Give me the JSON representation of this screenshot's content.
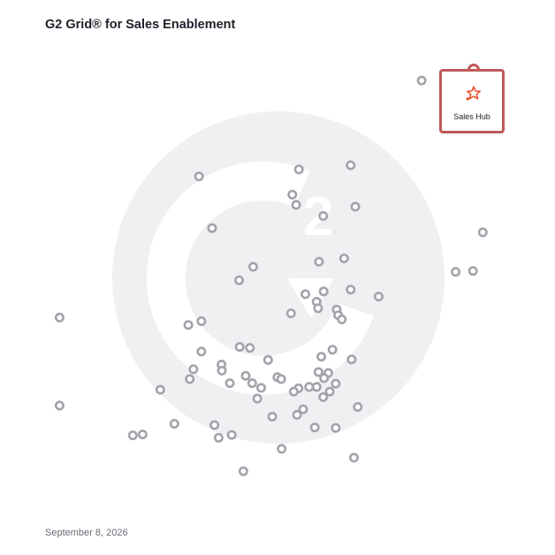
{
  "header": {
    "title": "G2 Grid® for Sales Enablement"
  },
  "footer": {
    "date": "September 8, 2026"
  },
  "colors": {
    "point_stroke": "#a3a4ab",
    "highlight": "#c0595a",
    "logo": "#e8512b",
    "watermark": "#eef0f2",
    "gradient_top_left": "#5a4fb5",
    "gradient_top_right": "#e8523b",
    "gradient_bottom_left": "#2fa1d8",
    "gradient_bottom_right": "#7a3ea8"
  },
  "chart_data": {
    "type": "scatter",
    "title": "G2 Grid® for Sales Enablement",
    "xlabel": "",
    "ylabel": "",
    "xlim": [
      0,
      100
    ],
    "ylim": [
      0,
      100
    ],
    "grid": "quadrants",
    "highlight": {
      "label": "Sales Hub",
      "x": 92.5,
      "y": 93.2,
      "icon": "hubspot-sprocket-icon"
    },
    "points": [
      [
        80.7,
        92.4
      ],
      [
        65.5,
        74.2
      ],
      [
        54.4,
        73.3
      ],
      [
        33.0,
        71.8
      ],
      [
        53.8,
        65.7
      ],
      [
        53.0,
        67.9
      ],
      [
        66.5,
        65.3
      ],
      [
        59.6,
        63.3
      ],
      [
        35.8,
        60.7
      ],
      [
        93.8,
        59.8
      ],
      [
        64.1,
        54.2
      ],
      [
        58.7,
        53.5
      ],
      [
        44.6,
        52.4
      ],
      [
        88.0,
        51.3
      ],
      [
        91.7,
        51.5
      ],
      [
        41.6,
        49.5
      ],
      [
        59.7,
        47.1
      ],
      [
        55.8,
        46.5
      ],
      [
        65.5,
        47.5
      ],
      [
        58.2,
        44.9
      ],
      [
        71.5,
        46.0
      ],
      [
        58.5,
        43.5
      ],
      [
        62.5,
        43.2
      ],
      [
        52.7,
        42.4
      ],
      [
        62.8,
        42.0
      ],
      [
        63.6,
        41.1
      ],
      [
        3.1,
        41.5
      ],
      [
        33.5,
        40.7
      ],
      [
        30.7,
        39.9
      ],
      [
        61.6,
        34.6
      ],
      [
        41.7,
        35.2
      ],
      [
        43.9,
        35.0
      ],
      [
        33.5,
        34.2
      ],
      [
        59.2,
        33.1
      ],
      [
        65.7,
        32.5
      ],
      [
        47.8,
        32.4
      ],
      [
        37.8,
        31.4
      ],
      [
        37.9,
        30.1
      ],
      [
        31.8,
        30.4
      ],
      [
        58.6,
        29.8
      ],
      [
        60.7,
        29.6
      ],
      [
        43.0,
        29.0
      ],
      [
        31.0,
        28.3
      ],
      [
        59.8,
        28.5
      ],
      [
        49.8,
        28.7
      ],
      [
        50.6,
        28.3
      ],
      [
        39.6,
        27.4
      ],
      [
        44.4,
        27.4
      ],
      [
        46.3,
        26.4
      ],
      [
        62.3,
        27.3
      ],
      [
        58.2,
        26.6
      ],
      [
        54.3,
        26.3
      ],
      [
        56.6,
        26.6
      ],
      [
        61.0,
        25.6
      ],
      [
        53.3,
        25.6
      ],
      [
        24.7,
        26.0
      ],
      [
        45.5,
        24.1
      ],
      [
        59.6,
        24.4
      ],
      [
        3.1,
        22.6
      ],
      [
        67.0,
        22.3
      ],
      [
        55.3,
        21.8
      ],
      [
        48.7,
        20.2
      ],
      [
        54.0,
        20.6
      ],
      [
        27.7,
        18.7
      ],
      [
        36.3,
        18.4
      ],
      [
        62.3,
        17.8
      ],
      [
        57.8,
        17.9
      ],
      [
        18.8,
        16.2
      ],
      [
        20.9,
        16.4
      ],
      [
        37.2,
        15.7
      ],
      [
        40.0,
        16.3
      ],
      [
        50.7,
        13.3
      ],
      [
        66.2,
        11.4
      ],
      [
        42.5,
        8.5
      ]
    ]
  }
}
